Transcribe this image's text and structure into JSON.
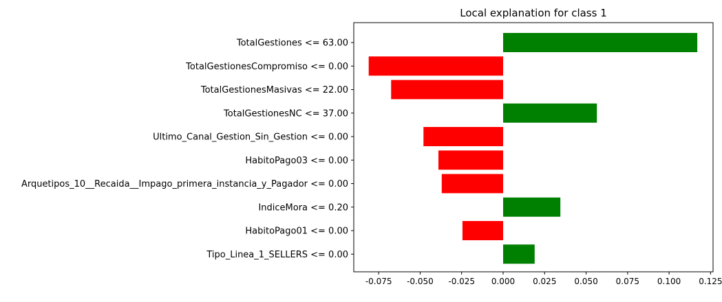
{
  "chart_data": {
    "type": "bar",
    "orientation": "horizontal",
    "title": "Local explanation for class 1",
    "xlabel": "",
    "ylabel": "",
    "xlim": [
      -0.09,
      0.1265
    ],
    "xticks": [
      "-0.075",
      "-0.050",
      "-0.025",
      "0.000",
      "0.025",
      "0.050",
      "0.075",
      "0.100",
      "0.125"
    ],
    "categories": [
      "TotalGestiones <= 63.00",
      "TotalGestionesCompromiso <= 0.00",
      "TotalGestionesMasivas <= 22.00",
      "TotalGestionesNC <= 37.00",
      "Ultimo_Canal_Gestion_Sin_Gestion <= 0.00",
      "HabitoPago03 <= 0.00",
      "Arquetipos_10__Recaida__Impago_primera_instancia_y_Pagador <= 0.00",
      "IndiceMora <= 0.20",
      "HabitoPago01 <= 0.00",
      "Tipo_Linea_1_SELLERS <= 0.00"
    ],
    "values": [
      0.117,
      -0.081,
      -0.0675,
      0.0565,
      -0.048,
      -0.039,
      -0.037,
      0.0345,
      -0.0245,
      0.019
    ],
    "grid": false,
    "colors": {
      "positive": "#008000",
      "negative": "#ff0000"
    }
  }
}
